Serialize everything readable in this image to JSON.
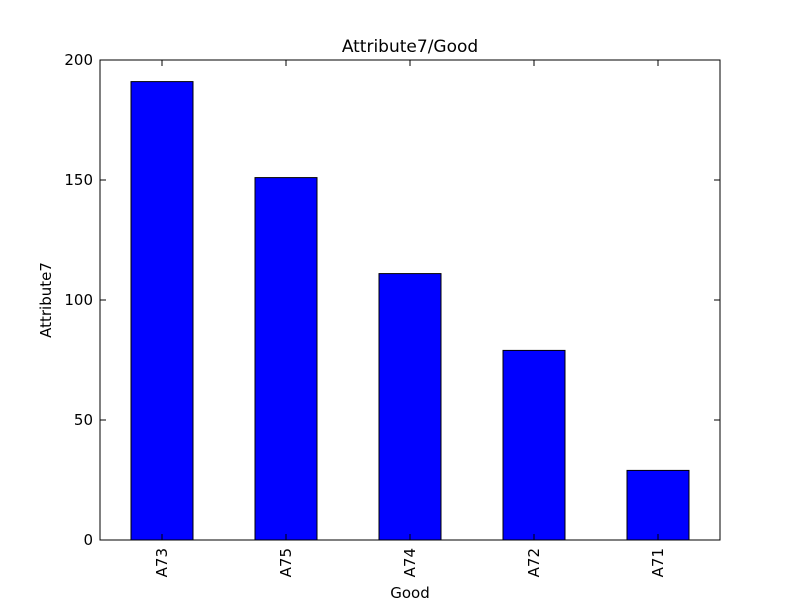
{
  "chart_data": {
    "type": "bar",
    "title": "Attribute7/Good",
    "xlabel": "Good",
    "ylabel": "Attribute7",
    "categories": [
      "A73",
      "A75",
      "A74",
      "A72",
      "A71"
    ],
    "values": [
      191,
      151,
      111,
      79,
      29
    ],
    "ylim": [
      0,
      200
    ],
    "yticks": [
      0,
      50,
      100,
      150,
      200
    ],
    "grid": false,
    "legend": "none",
    "bar_color": "#0000ff",
    "edge_color": "#000000"
  }
}
